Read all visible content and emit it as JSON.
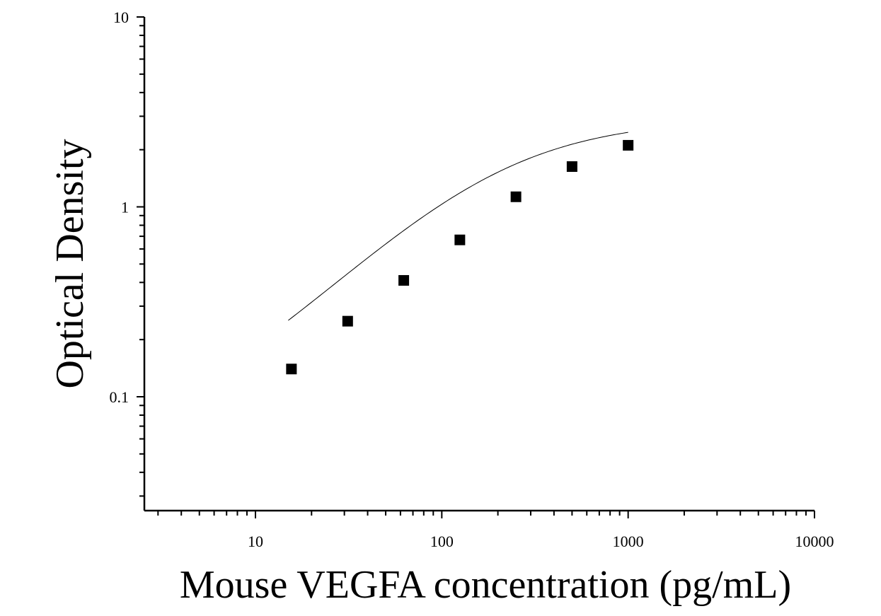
{
  "chart_data": {
    "type": "scatter",
    "xlabel": "Mouse VEGFA concentration (pg/mL)",
    "ylabel": "Optical Density",
    "x_scale": "log",
    "y_scale": "log",
    "xlim": [
      2.5,
      10000
    ],
    "ylim": [
      0.025,
      10
    ],
    "x_ticks": [
      10,
      100,
      1000,
      10000
    ],
    "x_tick_labels": [
      "10",
      "100",
      "1000",
      "10000"
    ],
    "y_ticks": [
      0.1,
      1,
      10
    ],
    "y_tick_labels": [
      "0.1",
      "1",
      "10"
    ],
    "grid": false,
    "series": [
      {
        "marker": "square",
        "color": "#000000",
        "x": [
          15.6,
          31.25,
          62.5,
          125,
          250,
          500,
          1000
        ],
        "y": [
          0.14,
          0.25,
          0.41,
          0.67,
          1.13,
          1.63,
          2.11
        ]
      }
    ],
    "fit_line": {
      "type": "4PL",
      "bottom": 0.052,
      "top": 2.91,
      "ec50": 189,
      "hill": 1.02,
      "x_range": [
        15,
        1000
      ],
      "color": "#000000"
    }
  }
}
